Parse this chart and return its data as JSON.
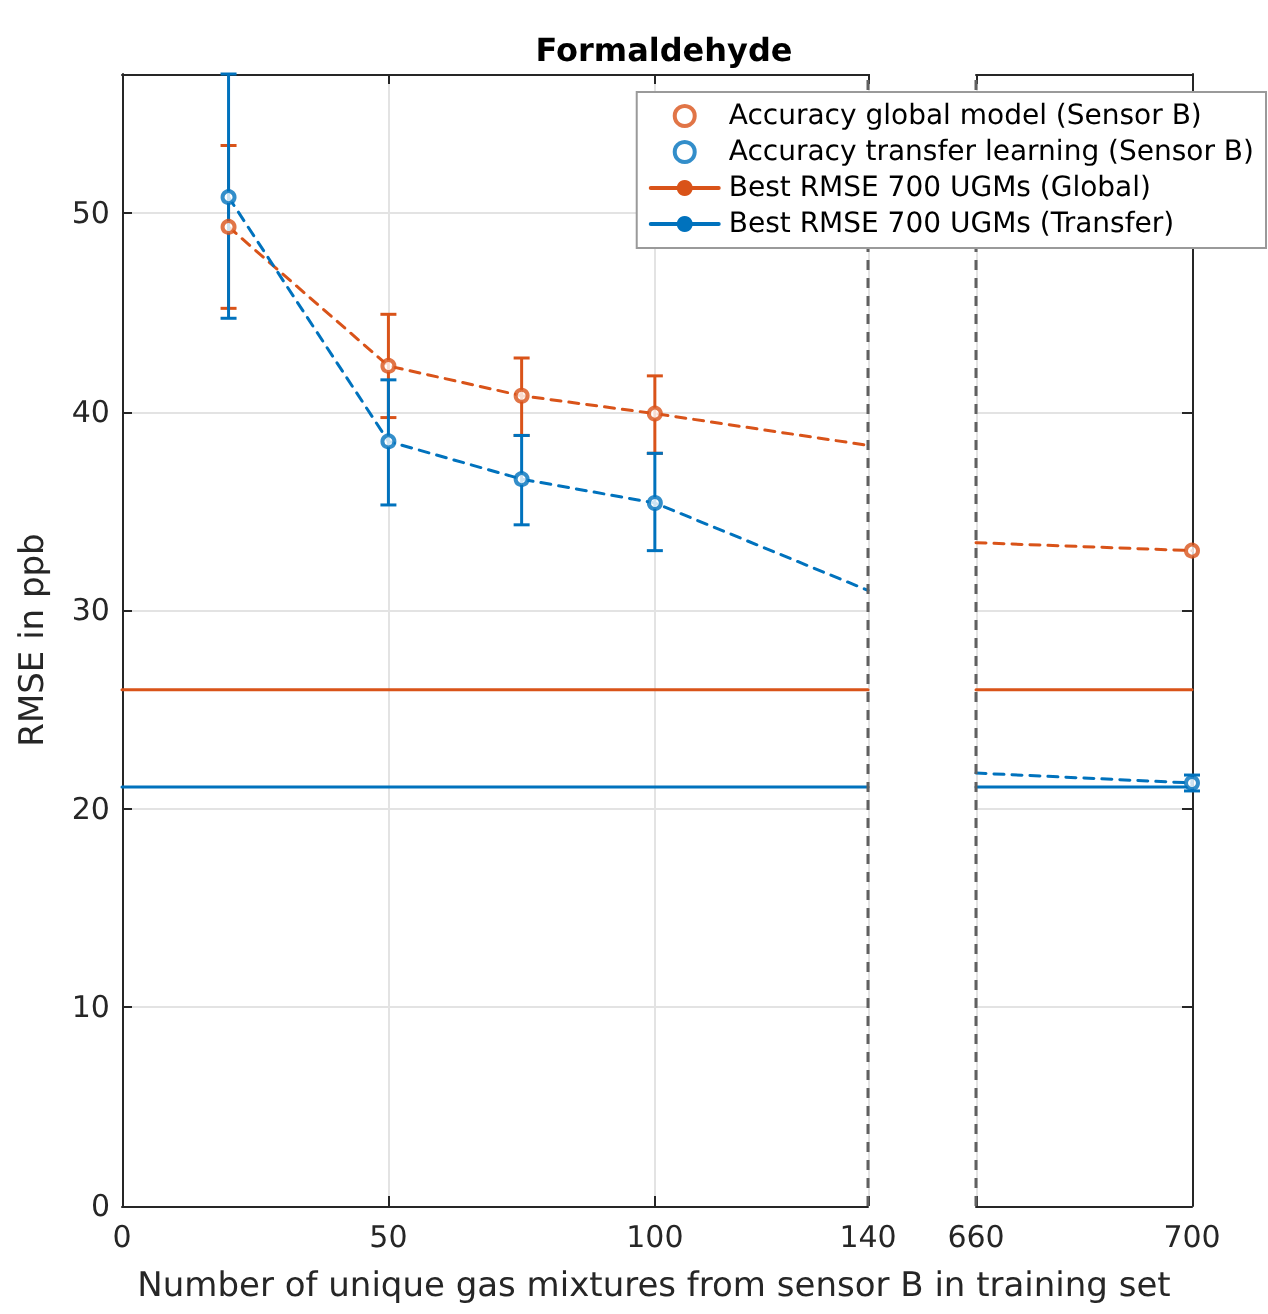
{
  "chart_data": [
    {
      "type": "scatter",
      "title": "Formaldehyde",
      "xlabel": "Number of unique gas mixtures from sensor B in training set",
      "ylabel": "RMSE in ppb",
      "xlim": [
        0,
        140
      ],
      "ylim": [
        0,
        57
      ],
      "xticks": [
        0,
        50,
        100,
        140
      ],
      "yticks": [
        0,
        10,
        20,
        30,
        40,
        50
      ],
      "grid": true,
      "legend": "top right",
      "marker": "circle",
      "series": [
        {
          "name": "Accuracy global model (Sensor B)",
          "color": "#d95319",
          "x": [
            20,
            50,
            75,
            100
          ],
          "values": [
            49.3,
            42.3,
            40.8,
            39.9
          ],
          "errors": [
            [
              45.2,
              53.4
            ],
            [
              39.7,
              44.9
            ],
            [
              38.8,
              42.7
            ],
            [
              37.9,
              41.8
            ]
          ]
        },
        {
          "name": "Accuracy transfer learning (Sensor B)",
          "color": "#0072bd",
          "x": [
            20,
            50,
            75,
            100
          ],
          "values": [
            50.8,
            38.5,
            36.6,
            35.4
          ],
          "errors": [
            [
              44.7,
              57
            ],
            [
              35.3,
              41.6
            ],
            [
              34.3,
              38.8
            ],
            [
              33.0,
              37.9
            ]
          ]
        },
        {
          "type": "line",
          "color": "#d95319",
          "x": [
            20,
            50,
            75,
            100,
            140
          ],
          "values": [
            49.3,
            42.3,
            40.8,
            39.9,
            38.3
          ],
          "marker": "none",
          "line_style": "dashed"
        },
        {
          "type": "line",
          "color": "#0072bd",
          "x": [
            20,
            50,
            75,
            100,
            140
          ],
          "values": [
            50.8,
            38.5,
            36.6,
            35.4,
            31.0
          ],
          "marker": "none",
          "line_style": "dashed"
        },
        {
          "type": "line",
          "name": "Best RMSE 700 UGMs (Global)",
          "color": "#d95319",
          "x": [
            0,
            140
          ],
          "values": [
            26.0,
            26.0
          ],
          "marker": "none",
          "line_style": "solid"
        },
        {
          "type": "line",
          "name": "Best RMSE 700 UGMs (Transfer)",
          "color": "#0072bd",
          "x": [
            0,
            140
          ],
          "values": [
            21.1,
            21.1
          ],
          "marker": "none",
          "line_style": "solid"
        }
      ],
      "ref_lines": [
        {
          "axis": "x",
          "value": 140,
          "color": "#606060",
          "line_style": "dashed"
        }
      ]
    },
    {
      "type": "scatter",
      "xlim": [
        660,
        700
      ],
      "ylim": [
        0,
        57
      ],
      "xticks": [
        660,
        700
      ],
      "yticks": [
        0,
        10,
        20,
        30,
        40,
        50
      ],
      "grid": true,
      "tick_labels": "x",
      "marker": "circle",
      "series": [
        {
          "color": "#d95319",
          "x": [
            700
          ],
          "values": [
            33.0
          ]
        },
        {
          "color": "#0072bd",
          "x": [
            700
          ],
          "values": [
            21.3
          ],
          "errors": [
            [
              20.9,
              21.7
            ]
          ]
        },
        {
          "type": "line",
          "color": "#d95319",
          "x": [
            660,
            700
          ],
          "values": [
            33.4,
            33.0
          ],
          "marker": "none",
          "line_style": "dashed"
        },
        {
          "type": "line",
          "color": "#0072bd",
          "x": [
            660,
            700
          ],
          "values": [
            21.8,
            21.3
          ],
          "marker": "none",
          "line_style": "dashed"
        },
        {
          "type": "line",
          "color": "#d95319",
          "x": [
            660,
            700
          ],
          "values": [
            26.0,
            26.0
          ],
          "marker": "none",
          "line_style": "solid"
        },
        {
          "type": "line",
          "color": "#0072bd",
          "x": [
            660,
            700
          ],
          "values": [
            21.1,
            21.1
          ],
          "marker": "none",
          "line_style": "solid"
        }
      ],
      "ref_lines": [
        {
          "axis": "x",
          "value": 660,
          "color": "#606060",
          "line_style": "dashed"
        }
      ]
    }
  ]
}
